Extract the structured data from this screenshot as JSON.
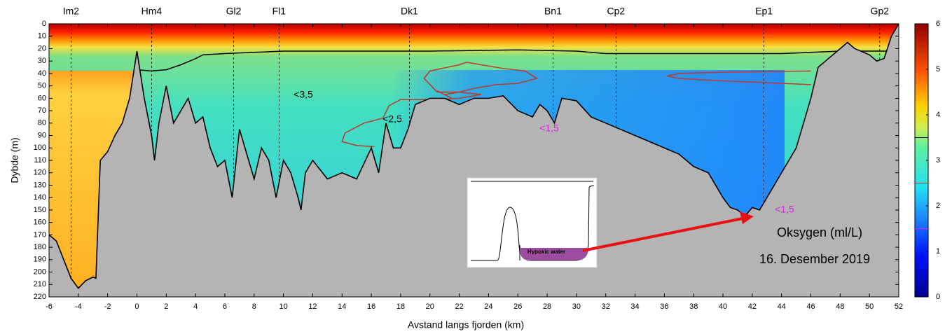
{
  "chart_data": {
    "type": "section",
    "xlabel": "Avstand langs fjorden (km)",
    "ylabel": "Dybde (m)",
    "xlim": [
      -6,
      52
    ],
    "ylim": [
      0,
      220
    ],
    "xticks": [
      -6,
      -4,
      -2,
      0,
      2,
      4,
      6,
      8,
      10,
      12,
      14,
      16,
      18,
      20,
      22,
      24,
      26,
      28,
      30,
      32,
      34,
      36,
      38,
      40,
      42,
      44,
      46,
      48,
      50,
      52
    ],
    "yticks": [
      0,
      10,
      20,
      30,
      40,
      50,
      60,
      70,
      80,
      90,
      100,
      110,
      120,
      130,
      140,
      150,
      160,
      170,
      180,
      190,
      200,
      210,
      220
    ],
    "stations": {
      "names": [
        "Im2",
        "Hm4",
        "Gl2",
        "Fl1",
        "Dk1",
        "Bn1",
        "Cp2",
        "Ep1",
        "Gp2"
      ],
      "x": [
        -4.5,
        1,
        6.6,
        9.7,
        18.6,
        28.4,
        32.7,
        42.8,
        50.7
      ]
    },
    "bottom": {
      "x": [
        -6,
        -5.5,
        -5,
        -4.5,
        -4,
        -3.5,
        -3,
        -2.8,
        -2.5,
        -2,
        -1.5,
        -1,
        -0.5,
        0,
        0.5,
        1,
        1.2,
        1.5,
        2,
        2.5,
        3,
        3.5,
        4,
        4.5,
        5,
        5.5,
        6,
        6.5,
        7,
        7.5,
        8,
        8.5,
        9,
        9.5,
        10,
        10.5,
        11,
        11.2,
        11.5,
        12,
        13,
        14,
        15,
        16,
        16.5,
        17,
        17.5,
        18,
        18.5,
        19,
        20,
        21,
        22,
        23,
        24,
        25,
        26,
        27,
        27.5,
        28,
        28.5,
        29,
        30,
        31,
        32,
        33,
        34,
        35,
        36,
        37,
        38,
        39,
        40,
        40.5,
        41,
        41.5,
        42,
        42.5,
        43,
        44,
        45,
        46,
        46.5,
        47,
        48,
        48.5,
        49,
        50,
        50.5,
        51,
        51.5,
        52
      ],
      "depth": [
        170,
        175,
        190,
        205,
        213,
        207,
        204,
        205,
        110,
        103,
        90,
        80,
        60,
        22,
        60,
        90,
        110,
        80,
        50,
        80,
        70,
        60,
        80,
        75,
        100,
        115,
        110,
        140,
        85,
        105,
        125,
        100,
        110,
        140,
        110,
        120,
        140,
        150,
        120,
        110,
        125,
        120,
        125,
        100,
        120,
        80,
        100,
        100,
        85,
        65,
        60,
        60,
        65,
        60,
        60,
        58,
        70,
        75,
        65,
        70,
        80,
        60,
        62,
        75,
        80,
        85,
        90,
        95,
        100,
        105,
        115,
        120,
        140,
        148,
        150,
        155,
        148,
        150,
        140,
        120,
        100,
        60,
        35,
        30,
        20,
        15,
        20,
        25,
        30,
        28,
        10,
        0
      ]
    },
    "contour_levels": [
      3.5,
      2.5,
      1.5
    ],
    "contour_colors": [
      "#000000",
      "#c0392b",
      "#e020e0"
    ],
    "contours": [
      {
        "level": 3.5,
        "x": [
          0,
          1,
          2,
          3,
          4,
          4.5,
          6,
          8,
          10,
          14,
          20,
          26,
          30,
          32,
          36,
          40,
          44,
          48,
          51.3
        ],
        "depth": [
          37,
          38,
          37,
          33,
          28,
          25,
          24,
          23,
          22,
          22,
          22,
          21,
          22,
          24,
          24,
          24,
          24,
          22,
          22
        ]
      },
      {
        "level": 2.5,
        "x": [
          16.2,
          15,
          14,
          14.2,
          15.5,
          16.8,
          17.2,
          18,
          20,
          22,
          23.5,
          22,
          20.5,
          19.6,
          20,
          22,
          22.5,
          23.5,
          25,
          26.5,
          27.3,
          26,
          24.5,
          23,
          22,
          21,
          20.5,
          21.5
        ],
        "depth": [
          99,
          98,
          95,
          88,
          80,
          76,
          66,
          61,
          61,
          60,
          57,
          55,
          55,
          44,
          38,
          33,
          31,
          33,
          36,
          38,
          44,
          48,
          49,
          52,
          55,
          57,
          54,
          60
        ]
      },
      {
        "level": 2.5,
        "x": [
          46,
          40,
          37,
          36.2,
          37,
          40,
          46
        ],
        "depth": [
          38,
          39,
          40,
          42,
          44,
          46,
          49
        ]
      }
    ],
    "colorbar": {
      "lim": [
        0,
        6
      ],
      "ticks": [
        0,
        1,
        2,
        3,
        4,
        5,
        6
      ]
    },
    "annotations": [
      "<3,5",
      "<2,5",
      "<1,5",
      "<1,5"
    ],
    "legend_title": "Oksygen (ml/L)",
    "date": "16. Desember 2019",
    "inset_label": "Hypoxic  water"
  }
}
